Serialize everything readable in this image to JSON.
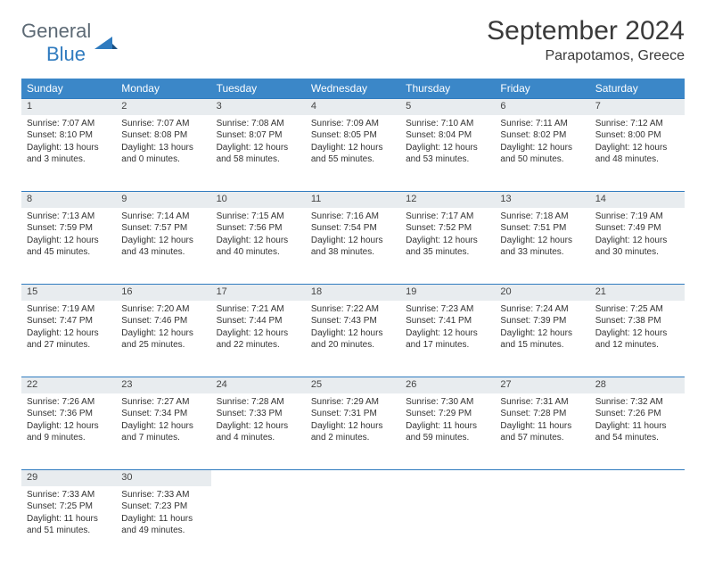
{
  "logo": {
    "text1": "General",
    "text2": "Blue"
  },
  "title": "September 2024",
  "location": "Parapotamos, Greece",
  "colors": {
    "header_bg": "#3b87c8",
    "header_text": "#ffffff",
    "daynum_bg": "#e8ecef",
    "border": "#2f7bbf",
    "logo_gray": "#5d6a75",
    "logo_blue": "#2f7bbf"
  },
  "weekdays": [
    "Sunday",
    "Monday",
    "Tuesday",
    "Wednesday",
    "Thursday",
    "Friday",
    "Saturday"
  ],
  "weeks": [
    [
      {
        "n": "1",
        "sunrise": "7:07 AM",
        "sunset": "8:10 PM",
        "daylight": "13 hours and 3 minutes."
      },
      {
        "n": "2",
        "sunrise": "7:07 AM",
        "sunset": "8:08 PM",
        "daylight": "13 hours and 0 minutes."
      },
      {
        "n": "3",
        "sunrise": "7:08 AM",
        "sunset": "8:07 PM",
        "daylight": "12 hours and 58 minutes."
      },
      {
        "n": "4",
        "sunrise": "7:09 AM",
        "sunset": "8:05 PM",
        "daylight": "12 hours and 55 minutes."
      },
      {
        "n": "5",
        "sunrise": "7:10 AM",
        "sunset": "8:04 PM",
        "daylight": "12 hours and 53 minutes."
      },
      {
        "n": "6",
        "sunrise": "7:11 AM",
        "sunset": "8:02 PM",
        "daylight": "12 hours and 50 minutes."
      },
      {
        "n": "7",
        "sunrise": "7:12 AM",
        "sunset": "8:00 PM",
        "daylight": "12 hours and 48 minutes."
      }
    ],
    [
      {
        "n": "8",
        "sunrise": "7:13 AM",
        "sunset": "7:59 PM",
        "daylight": "12 hours and 45 minutes."
      },
      {
        "n": "9",
        "sunrise": "7:14 AM",
        "sunset": "7:57 PM",
        "daylight": "12 hours and 43 minutes."
      },
      {
        "n": "10",
        "sunrise": "7:15 AM",
        "sunset": "7:56 PM",
        "daylight": "12 hours and 40 minutes."
      },
      {
        "n": "11",
        "sunrise": "7:16 AM",
        "sunset": "7:54 PM",
        "daylight": "12 hours and 38 minutes."
      },
      {
        "n": "12",
        "sunrise": "7:17 AM",
        "sunset": "7:52 PM",
        "daylight": "12 hours and 35 minutes."
      },
      {
        "n": "13",
        "sunrise": "7:18 AM",
        "sunset": "7:51 PM",
        "daylight": "12 hours and 33 minutes."
      },
      {
        "n": "14",
        "sunrise": "7:19 AM",
        "sunset": "7:49 PM",
        "daylight": "12 hours and 30 minutes."
      }
    ],
    [
      {
        "n": "15",
        "sunrise": "7:19 AM",
        "sunset": "7:47 PM",
        "daylight": "12 hours and 27 minutes."
      },
      {
        "n": "16",
        "sunrise": "7:20 AM",
        "sunset": "7:46 PM",
        "daylight": "12 hours and 25 minutes."
      },
      {
        "n": "17",
        "sunrise": "7:21 AM",
        "sunset": "7:44 PM",
        "daylight": "12 hours and 22 minutes."
      },
      {
        "n": "18",
        "sunrise": "7:22 AM",
        "sunset": "7:43 PM",
        "daylight": "12 hours and 20 minutes."
      },
      {
        "n": "19",
        "sunrise": "7:23 AM",
        "sunset": "7:41 PM",
        "daylight": "12 hours and 17 minutes."
      },
      {
        "n": "20",
        "sunrise": "7:24 AM",
        "sunset": "7:39 PM",
        "daylight": "12 hours and 15 minutes."
      },
      {
        "n": "21",
        "sunrise": "7:25 AM",
        "sunset": "7:38 PM",
        "daylight": "12 hours and 12 minutes."
      }
    ],
    [
      {
        "n": "22",
        "sunrise": "7:26 AM",
        "sunset": "7:36 PM",
        "daylight": "12 hours and 9 minutes."
      },
      {
        "n": "23",
        "sunrise": "7:27 AM",
        "sunset": "7:34 PM",
        "daylight": "12 hours and 7 minutes."
      },
      {
        "n": "24",
        "sunrise": "7:28 AM",
        "sunset": "7:33 PM",
        "daylight": "12 hours and 4 minutes."
      },
      {
        "n": "25",
        "sunrise": "7:29 AM",
        "sunset": "7:31 PM",
        "daylight": "12 hours and 2 minutes."
      },
      {
        "n": "26",
        "sunrise": "7:30 AM",
        "sunset": "7:29 PM",
        "daylight": "11 hours and 59 minutes."
      },
      {
        "n": "27",
        "sunrise": "7:31 AM",
        "sunset": "7:28 PM",
        "daylight": "11 hours and 57 minutes."
      },
      {
        "n": "28",
        "sunrise": "7:32 AM",
        "sunset": "7:26 PM",
        "daylight": "11 hours and 54 minutes."
      }
    ],
    [
      {
        "n": "29",
        "sunrise": "7:33 AM",
        "sunset": "7:25 PM",
        "daylight": "11 hours and 51 minutes."
      },
      {
        "n": "30",
        "sunrise": "7:33 AM",
        "sunset": "7:23 PM",
        "daylight": "11 hours and 49 minutes."
      },
      null,
      null,
      null,
      null,
      null
    ]
  ],
  "labels": {
    "sunrise": "Sunrise:",
    "sunset": "Sunset:",
    "daylight": "Daylight:"
  }
}
